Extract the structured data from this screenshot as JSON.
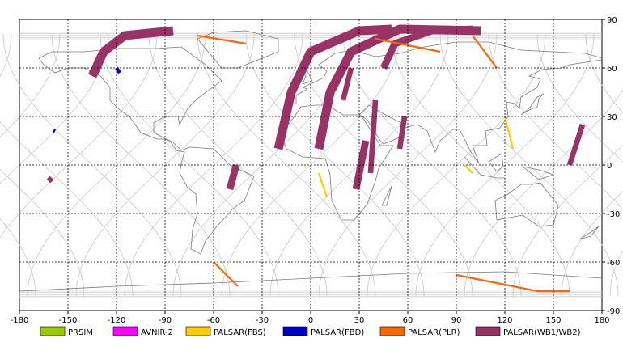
{
  "map": {
    "x_ticks": [
      "-180",
      "-150",
      "-120",
      "-90",
      "-60",
      "-30",
      "0",
      "30",
      "60",
      "90",
      "120",
      "150",
      "180"
    ],
    "y_ticks": [
      "90",
      "60",
      "30",
      "0",
      "-30",
      "-60",
      "-90"
    ],
    "lon_range": [
      -180,
      180
    ],
    "lat_range": [
      -90,
      90
    ],
    "grid": true,
    "colors": {
      "track": "#c8c8c8",
      "coast": "#7a7a7a",
      "grid": "#000000"
    }
  },
  "legend": [
    {
      "label": "PRSIM",
      "color": "#99cc00"
    },
    {
      "label": "AVNIR-2",
      "color": "#ff00ff"
    },
    {
      "label": "PALSAR(FBS)",
      "color": "#ffcc00"
    },
    {
      "label": "PALSAR(FBD)",
      "color": "#0000cc"
    },
    {
      "label": "PALSAR(PLR)",
      "color": "#ff6600"
    },
    {
      "label": "PALSAR(WB1/WB2)",
      "color": "#993366"
    }
  ],
  "swaths": [
    {
      "type": "WB1/WB2",
      "points": [
        [
          -135,
          55
        ],
        [
          -128,
          70
        ],
        [
          -115,
          80
        ],
        [
          -85,
          83
        ]
      ],
      "width": 5
    },
    {
      "type": "WB1/WB2",
      "points": [
        [
          -20,
          10
        ],
        [
          -12,
          45
        ],
        [
          0,
          70
        ],
        [
          30,
          83
        ],
        [
          50,
          84
        ]
      ],
      "width": 5
    },
    {
      "type": "WB1/WB2",
      "points": [
        [
          5,
          10
        ],
        [
          12,
          45
        ],
        [
          25,
          70
        ],
        [
          55,
          84
        ],
        [
          105,
          83
        ]
      ],
      "width": 5
    },
    {
      "type": "WB1/WB2",
      "points": [
        [
          45,
          60
        ],
        [
          52,
          75
        ],
        [
          75,
          83
        ],
        [
          100,
          84
        ]
      ],
      "width": 4
    },
    {
      "type": "WB1/WB2",
      "points": [
        [
          -50,
          -15
        ],
        [
          -46,
          0
        ]
      ],
      "width": 4
    },
    {
      "type": "WB1/WB2",
      "points": [
        [
          28,
          -15
        ],
        [
          34,
          15
        ]
      ],
      "width": 4
    },
    {
      "type": "WB1/WB2",
      "points": [
        [
          37,
          -5
        ],
        [
          40,
          40
        ]
      ],
      "width": 3
    },
    {
      "type": "WB1/WB2",
      "points": [
        [
          20,
          40
        ],
        [
          25,
          60
        ]
      ],
      "width": 3
    },
    {
      "type": "WB1/WB2",
      "points": [
        [
          160,
          0
        ],
        [
          168,
          25
        ]
      ],
      "width": 3
    },
    {
      "type": "WB1/WB2",
      "points": [
        [
          55,
          10
        ],
        [
          58,
          30
        ]
      ],
      "width": 3
    },
    {
      "type": "WB1/WB2",
      "points": [
        [
          -162,
          -10
        ],
        [
          -160,
          -8
        ]
      ],
      "width": 3
    },
    {
      "type": "PLR",
      "points": [
        [
          -70,
          80
        ],
        [
          -40,
          75
        ]
      ],
      "width": 1
    },
    {
      "type": "PLR",
      "points": [
        [
          -60,
          -60
        ],
        [
          -45,
          -75
        ]
      ],
      "width": 1
    },
    {
      "type": "PLR",
      "points": [
        [
          90,
          -68
        ],
        [
          140,
          -78
        ]
      ],
      "width": 1
    },
    {
      "type": "PLR",
      "points": [
        [
          140,
          -78
        ],
        [
          160,
          -78
        ]
      ],
      "width": 1
    },
    {
      "type": "PLR",
      "points": [
        [
          40,
          78
        ],
        [
          80,
          70
        ]
      ],
      "width": 1
    },
    {
      "type": "PLR",
      "points": [
        [
          100,
          80
        ],
        [
          115,
          60
        ]
      ],
      "width": 1
    },
    {
      "type": "FBS",
      "points": [
        [
          5,
          -5
        ],
        [
          10,
          -20
        ]
      ],
      "width": 1
    },
    {
      "type": "FBS",
      "points": [
        [
          100,
          -5
        ],
        [
          95,
          0
        ]
      ],
      "width": 1
    },
    {
      "type": "FBS",
      "points": [
        [
          120,
          30
        ],
        [
          125,
          10
        ]
      ],
      "width": 1
    },
    {
      "type": "FBD",
      "points": [
        [
          -120,
          60
        ],
        [
          -118,
          57
        ]
      ],
      "width": 2
    },
    {
      "type": "FBD",
      "points": [
        [
          -159,
          20
        ],
        [
          -158,
          22
        ]
      ],
      "width": 1
    }
  ]
}
